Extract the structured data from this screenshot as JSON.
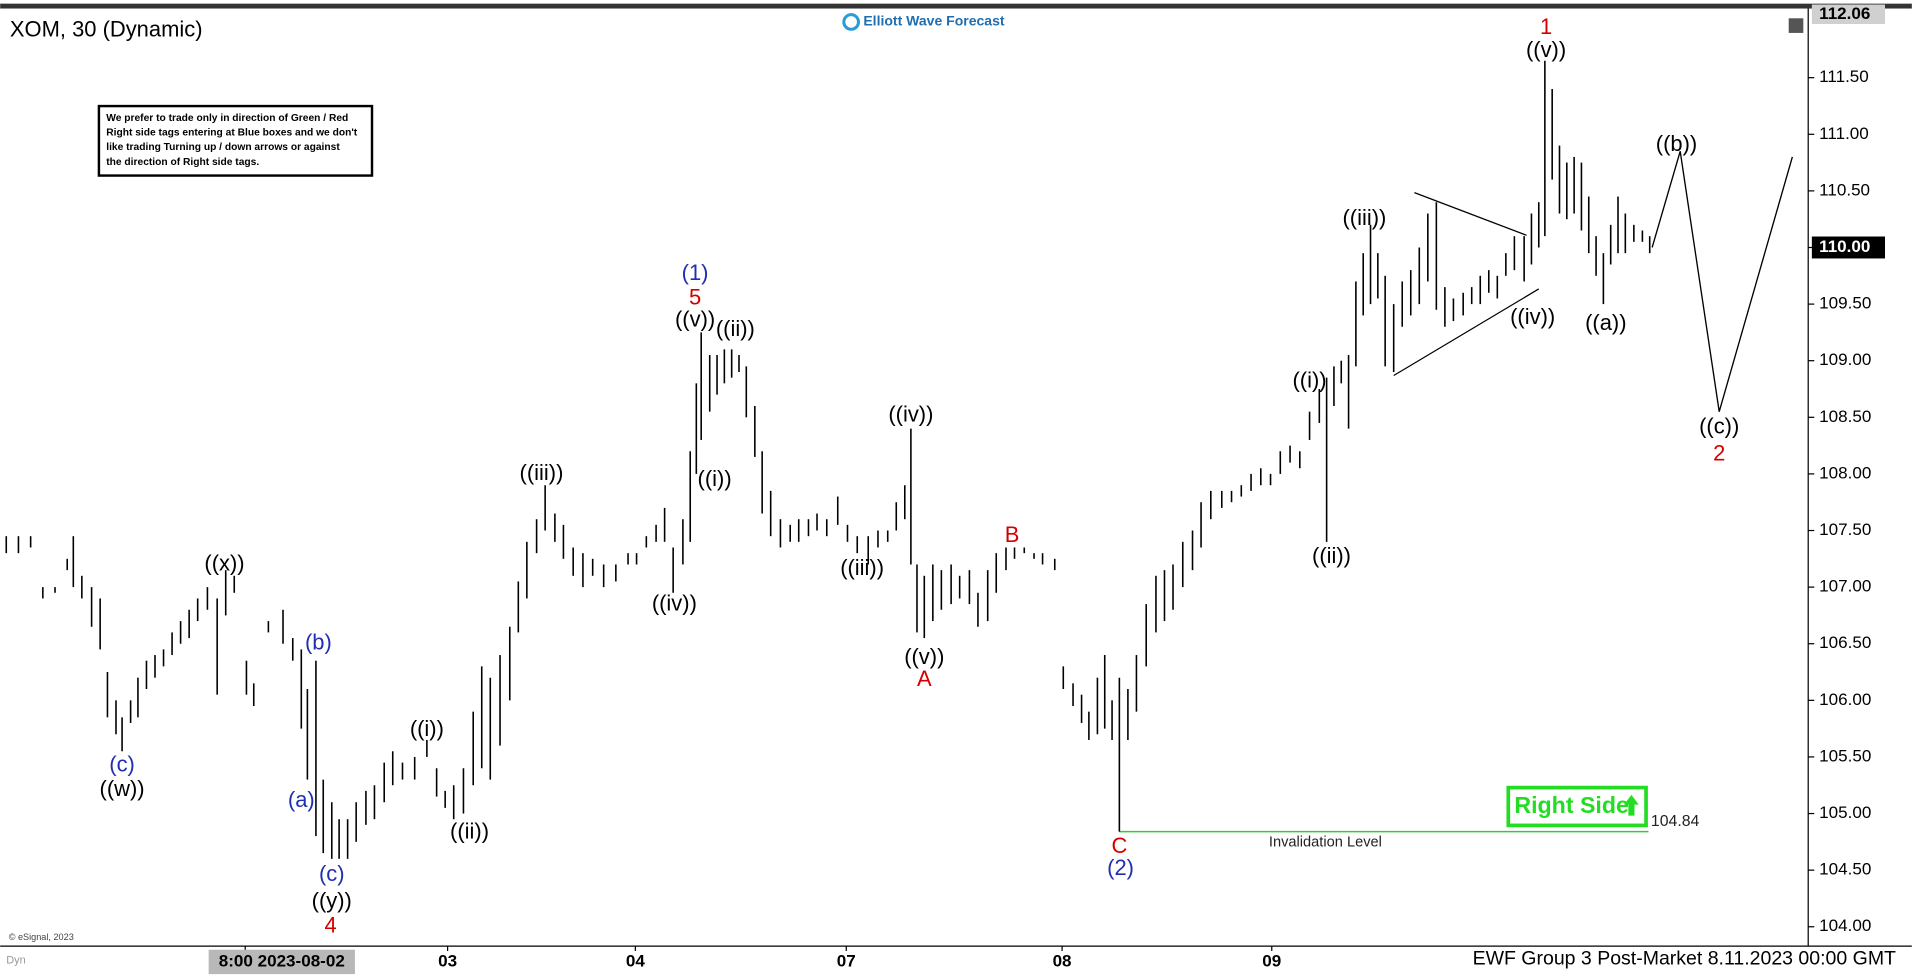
{
  "chart_data": {
    "type": "ohlc",
    "title": "XOM, 30 (Dynamic)",
    "logo": "Elliott Wave Forecast",
    "notice": [
      "We prefer to trade only in direction of Green / Red",
      "Right side tags entering at Blue boxes and we don't",
      "like trading Turning up / down arrows or against",
      "the direction of Right side tags."
    ],
    "right_side": "Right Side",
    "footer": "EWF Group 3 Post-Market 8.11.2023 00:00 GMT",
    "copyright": "© eSignal, 2023",
    "corner": "Dyn",
    "color": "#000000",
    "xlim": [
      0,
      1483
    ],
    "ylim": [
      103.84,
      112.1
    ],
    "xticks": [
      {
        "value": 201,
        "label": "8:00 2023-08-02"
      },
      {
        "value": 367,
        "label": "03"
      },
      {
        "value": 521,
        "label": "04"
      },
      {
        "value": 694,
        "label": "07"
      },
      {
        "value": 871,
        "label": "08"
      },
      {
        "value": 1043,
        "label": "09"
      }
    ],
    "yticks": [
      {
        "value": 104,
        "label": "104.00"
      },
      {
        "value": 104.5,
        "label": "104.50"
      },
      {
        "value": 105,
        "label": "105.00"
      },
      {
        "value": 105.5,
        "label": "105.50"
      },
      {
        "value": 106,
        "label": "106.00"
      },
      {
        "value": 106.5,
        "label": "106.50"
      },
      {
        "value": 107,
        "label": "107.00"
      },
      {
        "value": 107.5,
        "label": "107.50"
      },
      {
        "value": 108,
        "label": "108.00"
      },
      {
        "value": 108.5,
        "label": "108.50"
      },
      {
        "value": 109,
        "label": "109.00"
      },
      {
        "value": 109.5,
        "label": "109.50"
      },
      {
        "value": 110,
        "label": "110.00"
      },
      {
        "value": 110.5,
        "label": "110.50"
      },
      {
        "value": 111,
        "label": "111.00"
      },
      {
        "value": 111.5,
        "label": "111.50"
      }
    ],
    "high_tag": 112.06,
    "last_tag": {
      "value": 110.0,
      "label": "110.00"
    },
    "invalidation": {
      "value": 104.84,
      "text": "Invalidation Level",
      "color": "#33cc33"
    },
    "bars": {
      "x": [
        5,
        15,
        25,
        35,
        45,
        55,
        60,
        67,
        75,
        82,
        88,
        95,
        100,
        107,
        113,
        120,
        127,
        134,
        141,
        148,
        155,
        162,
        170,
        178,
        185,
        192,
        202,
        208,
        220,
        232,
        240,
        247,
        252,
        259,
        265,
        272,
        278,
        285,
        292,
        300,
        307,
        315,
        322,
        330,
        340,
        350,
        358,
        365,
        372,
        380,
        388,
        395,
        402,
        410,
        418,
        425,
        432,
        440,
        447,
        455,
        462,
        470,
        478,
        486,
        495,
        505,
        515,
        522,
        530,
        538,
        545,
        552,
        560,
        566,
        571,
        575,
        582,
        588,
        594,
        600,
        606,
        612,
        619,
        625,
        632,
        640,
        648,
        655,
        663,
        670,
        678,
        687,
        695,
        703,
        712,
        720,
        728,
        735,
        742,
        747,
        752,
        758,
        765,
        772,
        780,
        787,
        795,
        802,
        810,
        817,
        825,
        832,
        840,
        848,
        855,
        865,
        872,
        880,
        887,
        893,
        900,
        906,
        912,
        918,
        925,
        932,
        940,
        948,
        955,
        962,
        970,
        978,
        985,
        993,
        1002,
        1010,
        1018,
        1026,
        1034,
        1042,
        1050,
        1058,
        1066,
        1074,
        1082,
        1088,
        1094,
        1100,
        1106,
        1112,
        1118,
        1124,
        1130,
        1136,
        1143,
        1150,
        1157,
        1164,
        1171,
        1178,
        1185,
        1192,
        1200,
        1207,
        1214,
        1221,
        1228,
        1235,
        1242,
        1250,
        1256,
        1262,
        1267,
        1273,
        1279,
        1285,
        1291,
        1297,
        1303,
        1309,
        1315,
        1321,
        1327,
        1333,
        1340,
        1347,
        1353
      ],
      "high": [
        107.45,
        107.45,
        107.45,
        107.0,
        107.0,
        107.25,
        107.45,
        107.1,
        107.0,
        106.9,
        106.25,
        106.0,
        105.85,
        106.0,
        106.2,
        106.35,
        106.4,
        106.45,
        106.6,
        106.7,
        106.8,
        106.9,
        107.0,
        106.9,
        107.15,
        107.1,
        106.35,
        106.15,
        106.7,
        106.8,
        106.55,
        106.45,
        106.1,
        106.35,
        105.3,
        105.1,
        104.95,
        104.95,
        105.1,
        105.2,
        105.25,
        105.45,
        105.55,
        105.45,
        105.5,
        105.65,
        105.4,
        105.2,
        105.25,
        105.4,
        105.9,
        106.3,
        106.2,
        106.4,
        106.65,
        107.05,
        107.4,
        107.6,
        107.9,
        107.65,
        107.55,
        107.35,
        107.3,
        107.25,
        107.2,
        107.2,
        107.3,
        107.3,
        107.45,
        107.55,
        107.7,
        107.35,
        107.6,
        108.2,
        108.8,
        109.25,
        109.05,
        109.05,
        109.1,
        109.1,
        109.05,
        108.95,
        108.6,
        108.2,
        107.85,
        107.6,
        107.55,
        107.6,
        107.6,
        107.65,
        107.6,
        107.8,
        107.55,
        107.45,
        107.45,
        107.5,
        107.5,
        107.75,
        107.9,
        108.4,
        107.2,
        107.1,
        107.2,
        107.15,
        107.2,
        107.1,
        107.15,
        106.95,
        107.15,
        107.3,
        107.35,
        107.35,
        107.35,
        107.3,
        107.3,
        107.25,
        106.3,
        106.15,
        106.05,
        105.9,
        106.2,
        106.4,
        106.0,
        106.2,
        106.1,
        106.4,
        106.85,
        107.1,
        107.15,
        107.2,
        107.4,
        107.5,
        107.75,
        107.85,
        107.85,
        107.85,
        107.9,
        108.0,
        108.05,
        108.0,
        108.2,
        108.25,
        108.2,
        108.55,
        108.75,
        108.85,
        108.95,
        109.0,
        109.05,
        109.7,
        109.95,
        110.2,
        109.95,
        109.75,
        109.5,
        109.7,
        109.8,
        110.0,
        110.3,
        110.4,
        109.65,
        109.55,
        109.6,
        109.65,
        109.75,
        109.8,
        109.75,
        109.95,
        110.1,
        110.1,
        110.3,
        110.4,
        111.65,
        111.4,
        110.9,
        110.75,
        110.8,
        110.75,
        110.45,
        110.1,
        109.95,
        110.2,
        110.45,
        110.3,
        110.2,
        110.15,
        110.1
      ],
      "low": [
        107.3,
        107.3,
        107.35,
        106.9,
        106.95,
        107.15,
        107.0,
        106.9,
        106.65,
        106.45,
        105.85,
        105.7,
        105.55,
        105.8,
        105.85,
        106.1,
        106.2,
        106.3,
        106.4,
        106.5,
        106.55,
        106.7,
        106.8,
        106.05,
        106.75,
        106.95,
        106.05,
        105.95,
        106.6,
        106.5,
        106.35,
        105.75,
        105.3,
        104.8,
        104.65,
        104.6,
        104.6,
        104.6,
        104.75,
        104.9,
        104.95,
        105.1,
        105.25,
        105.3,
        105.3,
        105.5,
        105.15,
        105.05,
        104.95,
        105.0,
        105.25,
        105.4,
        105.3,
        105.6,
        106.0,
        106.6,
        106.9,
        107.3,
        107.5,
        107.4,
        107.25,
        107.1,
        107.0,
        107.1,
        107.0,
        107.05,
        107.2,
        107.2,
        107.35,
        107.4,
        107.4,
        106.95,
        107.2,
        107.4,
        108.0,
        108.3,
        108.55,
        108.7,
        108.8,
        108.85,
        108.9,
        108.5,
        108.15,
        107.65,
        107.45,
        107.35,
        107.4,
        107.4,
        107.45,
        107.5,
        107.45,
        107.55,
        107.4,
        107.3,
        107.2,
        107.35,
        107.4,
        107.5,
        107.6,
        107.2,
        106.6,
        106.55,
        106.7,
        106.8,
        106.85,
        106.9,
        106.85,
        106.65,
        106.7,
        106.95,
        107.15,
        107.25,
        107.3,
        107.25,
        107.2,
        107.15,
        106.1,
        105.95,
        105.8,
        105.65,
        105.7,
        105.75,
        105.65,
        104.84,
        105.65,
        105.9,
        106.3,
        106.6,
        106.7,
        106.8,
        107.0,
        107.15,
        107.35,
        107.6,
        107.7,
        107.75,
        107.8,
        107.85,
        107.9,
        107.9,
        108.0,
        108.1,
        108.05,
        108.3,
        108.45,
        107.4,
        108.6,
        108.8,
        108.4,
        108.95,
        109.4,
        109.5,
        109.55,
        108.95,
        108.9,
        109.3,
        109.4,
        109.5,
        109.7,
        109.45,
        109.3,
        109.35,
        109.4,
        109.5,
        109.5,
        109.6,
        109.55,
        109.75,
        109.8,
        109.7,
        109.85,
        110.0,
        110.1,
        110.6,
        110.3,
        110.25,
        110.3,
        110.15,
        109.95,
        109.75,
        109.5,
        109.85,
        109.95,
        109.95,
        110.05,
        110.05,
        109.95
      ]
    },
    "projection": {
      "x": [
        1355,
        1378,
        1410,
        1470
      ],
      "values": [
        110.0,
        110.85,
        108.55,
        110.8
      ]
    },
    "annotations": [
      {
        "text": "((w))",
        "color": "#000000"
      },
      {
        "text": "(c)",
        "color": "#1f2fb0"
      },
      {
        "text": "((x))",
        "color": "#000000"
      },
      {
        "text": "(a)",
        "color": "#1f2fb0"
      },
      {
        "text": "(b)",
        "color": "#1f2fb0"
      },
      {
        "text": "(c)",
        "color": "#1f2fb0"
      },
      {
        "text": "((y))",
        "color": "#000000"
      },
      {
        "text": "4",
        "color": "#d40000"
      },
      {
        "text": "((i))",
        "color": "#000000"
      },
      {
        "text": "((ii))",
        "color": "#000000"
      },
      {
        "text": "((iii))",
        "color": "#000000"
      },
      {
        "text": "((iv))",
        "color": "#000000"
      },
      {
        "text": "(1)",
        "color": "#1f2fb0"
      },
      {
        "text": "5",
        "color": "#d40000"
      },
      {
        "text": "((v))",
        "color": "#000000"
      },
      {
        "text": "((ii))",
        "color": "#000000"
      },
      {
        "text": "((i))",
        "color": "#000000"
      },
      {
        "text": "((iii))",
        "color": "#000000"
      },
      {
        "text": "((iv))",
        "color": "#000000"
      },
      {
        "text": "((v))",
        "color": "#000000"
      },
      {
        "text": "A",
        "color": "#d40000"
      },
      {
        "text": "B",
        "color": "#d40000"
      },
      {
        "text": "C",
        "color": "#d40000"
      },
      {
        "text": "(2)",
        "color": "#1f2fb0"
      },
      {
        "text": "((i))",
        "color": "#000000"
      },
      {
        "text": "((ii))",
        "color": "#000000"
      },
      {
        "text": "((iii))",
        "color": "#000000"
      },
      {
        "text": "((iv))",
        "color": "#000000"
      },
      {
        "text": "1",
        "color": "#d40000"
      },
      {
        "text": "((v))",
        "color": "#000000"
      },
      {
        "text": "((a))",
        "color": "#000000"
      },
      {
        "text": "((b))",
        "color": "#000000"
      },
      {
        "text": "((c))",
        "color": "#000000"
      },
      {
        "text": "2",
        "color": "#d40000"
      }
    ]
  }
}
